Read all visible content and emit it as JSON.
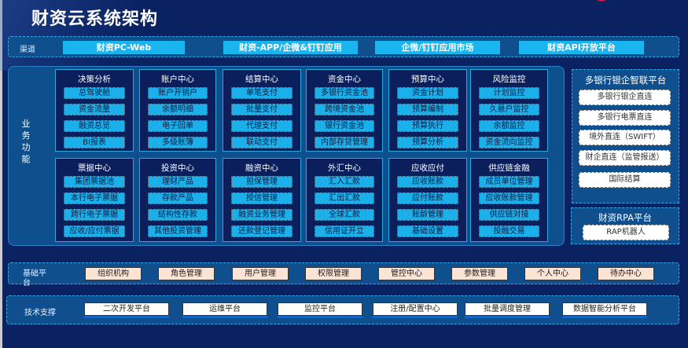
{
  "title": "财资云系统架构",
  "colors": {
    "background": "#0a2262",
    "band": "#0f4f8e",
    "channel_button": "#1ab4ee",
    "module_bg": "#0b1f5c",
    "base_button": "#fbe3d5"
  },
  "channel": {
    "label": "渠道",
    "items": [
      "财资PC-Web",
      "财资-APP/企微&钉钉应用",
      "企微/钉钉应用市场",
      "财资API开放平台"
    ]
  },
  "business": {
    "label": "业务功能",
    "modules": [
      {
        "title": "决策分析",
        "items": [
          "总驾驶舱",
          "资金流量",
          "融资总览",
          "BI报表"
        ]
      },
      {
        "title": "账户中心",
        "items": [
          "账户开销户",
          "余额明细",
          "电子回单",
          "多级账簿"
        ]
      },
      {
        "title": "结算中心",
        "items": [
          "单笔支付",
          "批量支付",
          "代理支付",
          "联动支付"
        ]
      },
      {
        "title": "资金中心",
        "items": [
          "多银行资金池",
          "跨境资金池",
          "银行资金池",
          "内部存贷管理"
        ]
      },
      {
        "title": "预算中心",
        "items": [
          "资金计划",
          "预算编制",
          "预算执行",
          "预算分析"
        ]
      },
      {
        "title": "风险监控",
        "items": [
          "计划监控",
          "久悬户监控",
          "余额监控",
          "资金流向监控"
        ]
      },
      {
        "title": "票据中心",
        "items": [
          "集团票据池",
          "本行电子票据",
          "跨行电子票据",
          "应收/应付票据"
        ]
      },
      {
        "title": "投资中心",
        "items": [
          "理财产品",
          "存款产品",
          "结构性存款",
          "其他投资管理"
        ]
      },
      {
        "title": "融资中心",
        "items": [
          "担保管理",
          "授信管理",
          "融资业务管理",
          "还款登记管理"
        ]
      },
      {
        "title": "外汇中心",
        "items": [
          "汇入汇款",
          "汇出汇款",
          "全球汇款",
          "信用证开立"
        ]
      },
      {
        "title": "应收应付",
        "items": [
          "应收账款",
          "应付账款",
          "账龄管理",
          "基础设置"
        ]
      },
      {
        "title": "供应链金融",
        "items": [
          "成员单位管理",
          "应收账款管理",
          "供应链对接",
          "投融交易"
        ]
      }
    ]
  },
  "bank_platform": {
    "title": "多银行银企智联平台",
    "items": [
      "多银行银企直连",
      "多银行电票直连",
      "境外直连（SWIFT）",
      "财企直连（监管报送）",
      "国际结算"
    ]
  },
  "rpa_platform": {
    "title": "财资RPA平台",
    "items": [
      "RAP机器人"
    ]
  },
  "base_platform": {
    "label": "基础平\n台",
    "items": [
      "组织机构",
      "角色管理",
      "用户管理",
      "权限管理",
      "管控中心",
      "参数管理",
      "个人中心",
      "待办中心"
    ]
  },
  "tech_support": {
    "label": "技术支撑",
    "items": [
      "二次开发平台",
      "运维平台",
      "监控平台",
      "注册/配置中心",
      "批量调度管理",
      "数据智能分析平台"
    ]
  }
}
